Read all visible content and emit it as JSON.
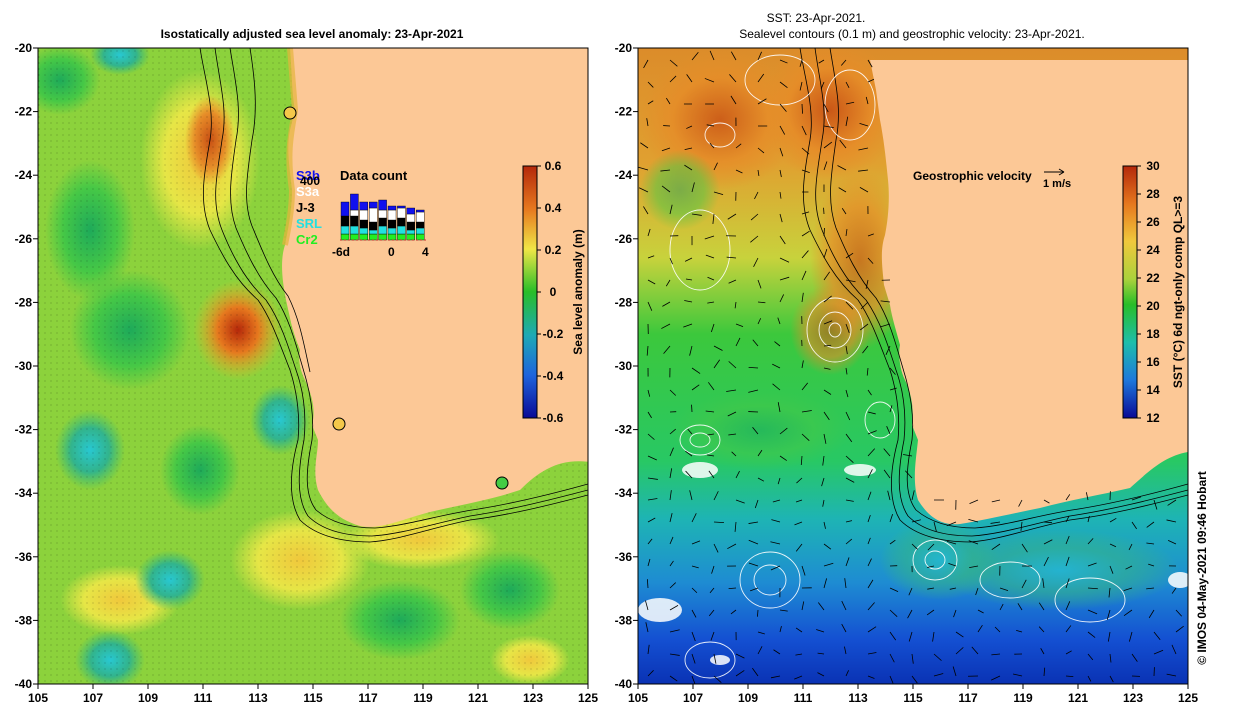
{
  "left_panel": {
    "title": "Isostatically adjusted sea level anomaly: 23-Apr-2021",
    "x_ticks": [
      "105",
      "107",
      "109",
      "111",
      "113",
      "115",
      "117",
      "119",
      "121",
      "123",
      "125"
    ],
    "y_ticks": [
      "-20",
      "-22",
      "-24",
      "-26",
      "-28",
      "-30",
      "-32",
      "-34",
      "-36",
      "-38",
      "-40"
    ],
    "colorbar": {
      "label": "Sea level anomaly (m)",
      "ticks": [
        "0.6",
        "0.4",
        "0.2",
        "0",
        "-0.2",
        "-0.4",
        "-0.6"
      ],
      "range": [
        -0.6,
        0.6
      ]
    },
    "inset": {
      "title": "Data count",
      "sources": [
        {
          "name": "S3b",
          "color": "#1010ee"
        },
        {
          "name": "S3a",
          "color": "#ffffff"
        },
        {
          "name": "J-3",
          "color": "#000000"
        },
        {
          "name": "SRL",
          "color": "#22e0e0"
        },
        {
          "name": "Cr2",
          "color": "#22ee22"
        }
      ],
      "scale_value": "400",
      "axis_ticks": [
        "-6d",
        "0",
        "4"
      ]
    },
    "stations": [
      {
        "lon": 114.1,
        "lat": -22.0,
        "color": "#f4c84a"
      },
      {
        "lon": 115.9,
        "lat": -31.8,
        "color": "#f4c84a"
      },
      {
        "lon": 121.9,
        "lat": -33.7,
        "color": "#44cc44"
      }
    ]
  },
  "right_panel": {
    "title_line1": "SST: 23-Apr-2021.",
    "title_line2": "Sealevel contours (0.1 m) and geostrophic velocity: 23-Apr-2021.",
    "x_ticks": [
      "105",
      "107",
      "109",
      "111",
      "113",
      "115",
      "117",
      "119",
      "121",
      "123",
      "125"
    ],
    "y_ticks": [
      "-20",
      "-22",
      "-24",
      "-26",
      "-28",
      "-30",
      "-32",
      "-34",
      "-36",
      "-38",
      "-40"
    ],
    "colorbar": {
      "label": "SST (°C) 6d ngt-only comp QL>=3",
      "ticks": [
        "30",
        "28",
        "26",
        "24",
        "22",
        "20",
        "18",
        "16",
        "14",
        "12"
      ],
      "range": [
        12,
        30
      ]
    },
    "velocity_legend": {
      "label": "Geostrophic velocity",
      "unit": "1 m/s"
    }
  },
  "credit": "© IMOS 04-May-2021 09:46 Hobart",
  "colors": {
    "land": "#fcc896",
    "sla_high": "#b4280a",
    "sla_low": "#0a0a96",
    "sst_warm": "#c85014",
    "sst_cold": "#0a3cc8"
  }
}
